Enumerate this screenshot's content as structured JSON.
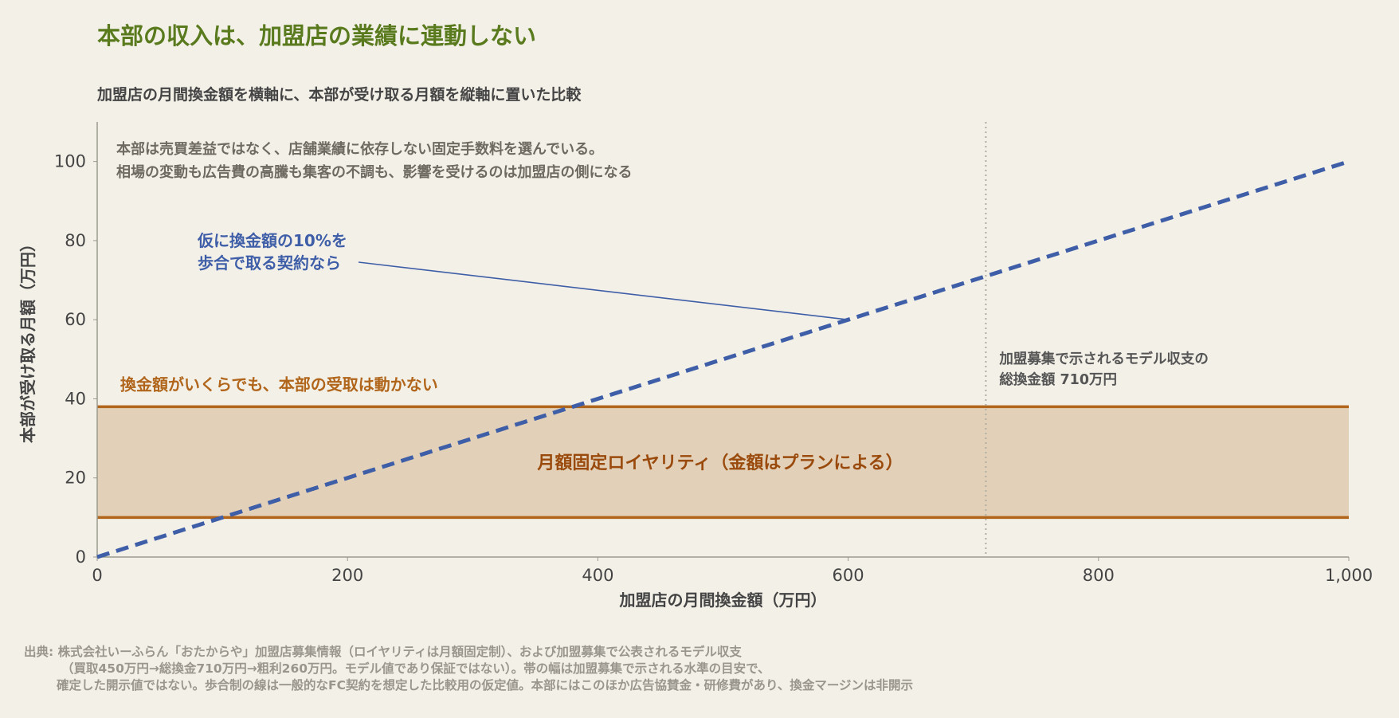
{
  "title": "本部の収入は、加盟店の業績に連動しない",
  "subtitle": "加盟店の月間換金額を横軸に、本部が受け取る月額を縦軸に置いた比較",
  "source_lines": [
    "出典: 株式会社いーふらん「おたからや」加盟店募集情報（ロイヤリティは月額固定制）、および加盟募集で公表されるモデル収支",
    "（買取450万円→総換金710万円→粗利260万円。モデル値であり保証ではない）。帯の幅は加盟募集で示される水準の目安で、",
    "確定した開示値ではない。歩合制の線は一般的なFC契約を想定した比較用の仮定値。本部にはこのほか広告協賛金・研修費があり、換金マージンは非開示"
  ],
  "colors": {
    "title": "#5a7a1e",
    "band_fill": "#e2d1b8",
    "band_edge": "#b0651a",
    "band_text": "#9a4a0c",
    "dashed_line": "#3f5ea8",
    "annotation_blue": "#3f5ea8",
    "muted_text": "#6e6a62",
    "axis": "#9a9a8e",
    "marker_line": "#b3ada0"
  },
  "chart_data": {
    "type": "line",
    "xlabel": "加盟店の月間換金額（万円）",
    "ylabel": "本部が受け取る月額（万円）",
    "xlim": [
      0,
      1000
    ],
    "ylim": [
      0,
      100
    ],
    "xticks": [
      0,
      200,
      400,
      600,
      800,
      1000
    ],
    "xtick_labels": [
      "0",
      "200",
      "400",
      "600",
      "800",
      "1,000"
    ],
    "yticks": [
      0,
      20,
      40,
      60,
      80,
      100
    ],
    "ytick_labels": [
      "0",
      "20",
      "40",
      "60",
      "80",
      "100"
    ],
    "grid": false,
    "series": [
      {
        "style": "dashed",
        "x": [
          0,
          1000
        ],
        "y": [
          0,
          100
        ]
      }
    ],
    "band": {
      "y_low": 10,
      "y_high": 38,
      "label": "月額固定ロイヤリティ（金額はプランによる）",
      "top_label": "換金額がいくらでも、本部の受取は動かない"
    },
    "vline": {
      "x": 710,
      "label_lines": [
        "加盟募集で示されるモデル収支の",
        "総換金額 710万円"
      ]
    },
    "annotations": {
      "note_lines": [
        "本部は売買差益ではなく、店舗業績に依存しない固定手数料を選んでいる。",
        "相場の変動も広告費の高騰も集客の不調も、影響を受けるのは加盟店の側になる"
      ],
      "callout_lines": [
        "仮に換金額の10%を",
        "歩合で取る契約なら"
      ],
      "callout_point": {
        "x": 600,
        "y": 60
      }
    }
  }
}
